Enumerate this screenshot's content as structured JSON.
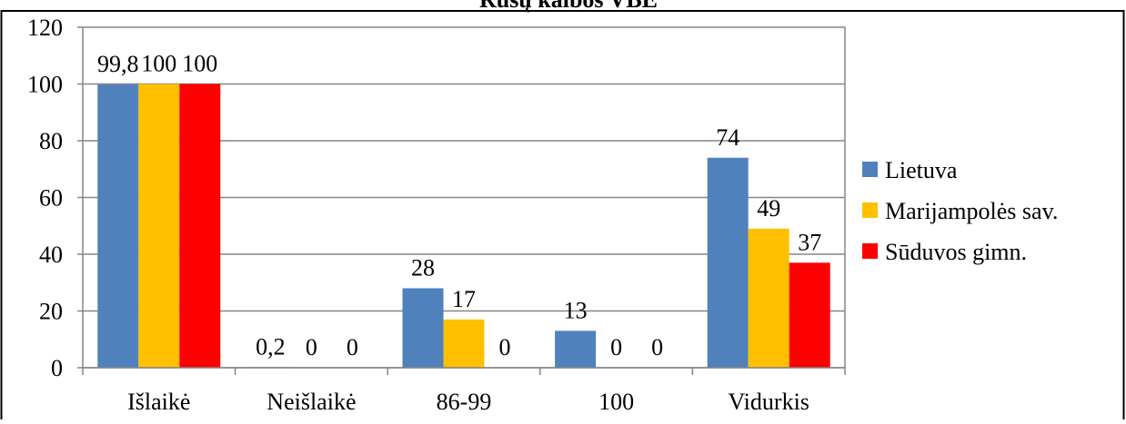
{
  "chart_data": {
    "type": "bar",
    "title": "Rusų kalbos VBE",
    "categories": [
      "Išlaikė",
      "Neišlaikė",
      "86-99",
      "100",
      "Vidurkis"
    ],
    "series": [
      {
        "name": "Lietuva",
        "color": "#4F81BD",
        "values": [
          99.8,
          0.2,
          28,
          13,
          74
        ],
        "labels": [
          "99,8",
          "0,2",
          "28",
          "13",
          "74"
        ]
      },
      {
        "name": "Marijampolės sav.",
        "color": "#FFC000",
        "values": [
          100,
          0,
          17,
          0,
          49
        ],
        "labels": [
          "100",
          "0",
          "17",
          "0",
          "49"
        ]
      },
      {
        "name": "Sūduvos gimn.",
        "color": "#FF0000",
        "values": [
          100,
          0,
          0,
          0,
          37
        ],
        "labels": [
          "100",
          "0",
          "0",
          "0",
          "37"
        ]
      }
    ],
    "yticks": [
      "0",
      "20",
      "40",
      "60",
      "80",
      "100",
      "120"
    ],
    "ylim": [
      0,
      120
    ],
    "grid": true,
    "legend": "right"
  }
}
